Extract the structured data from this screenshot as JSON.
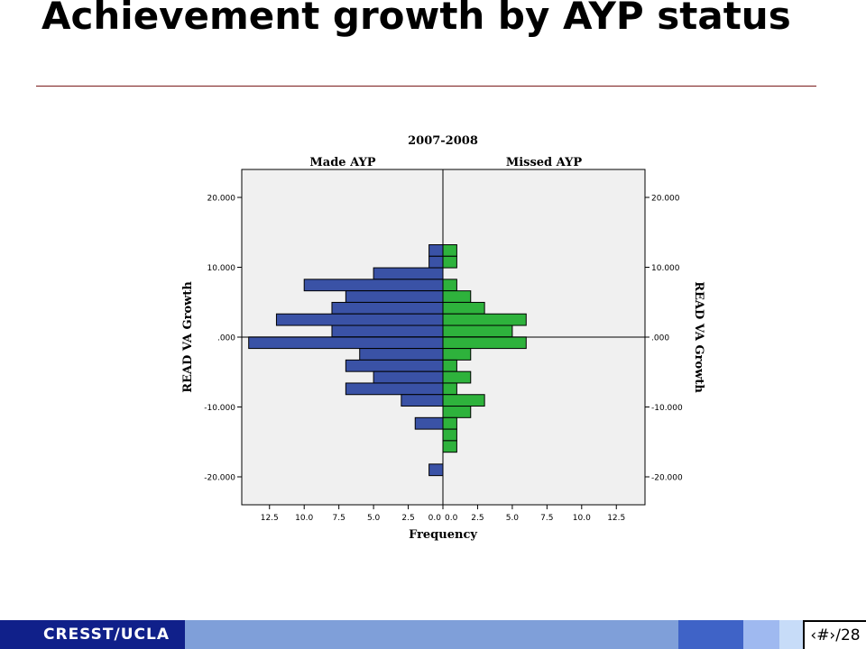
{
  "slide": {
    "title": "Achievement growth by AYP status",
    "footer_label": "CRESST/UCLA",
    "page_number": "‹#›/28"
  },
  "colors": {
    "made_ayp": "#3a52a6",
    "missed_ayp": "#2eb23c",
    "plot_background": "#f0f0f0",
    "title_rule": "#7a1a1a",
    "footer_dark": "#10208a",
    "footer_mid": "#7f9fd9",
    "footer_blue": "#3f63c7",
    "footer_light": "#9fb9f0",
    "footer_pale": "#c7dcf8"
  },
  "chart_data": {
    "type": "bar",
    "title": "2007-2008",
    "panel_labels": [
      "Made AYP",
      "Missed AYP"
    ],
    "xlabel": "Frequency",
    "ylabel": "READ VA Growth",
    "ylim": [
      -24,
      24
    ],
    "xlim": [
      0,
      14.5
    ],
    "yticks": [
      20,
      10,
      0,
      -10,
      -20
    ],
    "ytick_labels": [
      "20.000",
      "10.000",
      ".000",
      "-10.000",
      "-20.000"
    ],
    "xticks": [
      12.5,
      10,
      7.5,
      5,
      2.5,
      0
    ],
    "xtick_labels": [
      "12.5",
      "10.0",
      "7.5",
      "5.0",
      "2.5",
      "0.0"
    ],
    "legend": "none",
    "grid": false,
    "bin_width": 1.65,
    "bin_centers": [
      12.4,
      10.75,
      9.1,
      7.45,
      5.8,
      4.15,
      2.5,
      0.85,
      -0.8,
      -2.45,
      -4.1,
      -5.75,
      -7.4,
      -9.05,
      -10.7,
      -12.35,
      -14.0,
      -15.65,
      -19.0
    ],
    "series": [
      {
        "name": "Made AYP",
        "values": [
          1,
          1,
          5,
          10,
          7,
          8,
          12,
          8,
          14,
          6,
          7,
          5,
          7,
          3,
          0,
          2,
          0,
          0,
          1
        ]
      },
      {
        "name": "Missed AYP",
        "values": [
          1,
          1,
          0,
          1,
          2,
          3,
          6,
          5,
          6,
          2,
          1,
          2,
          1,
          3,
          2,
          1,
          1,
          1,
          0
        ]
      }
    ]
  }
}
